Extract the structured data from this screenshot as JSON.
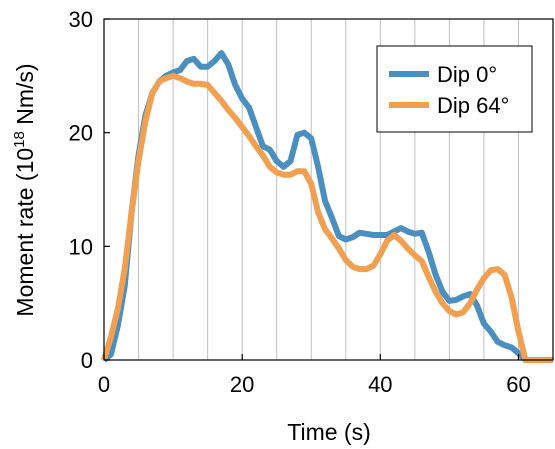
{
  "chart_data": {
    "type": "line",
    "xlabel": "Time (s)",
    "ylabel_main": "Moment rate (10",
    "ylabel_exp": "18",
    "ylabel_tail": " Nm/s)",
    "xlim": [
      0,
      65
    ],
    "ylim": [
      0,
      30
    ],
    "xticks": [
      0,
      20,
      40,
      60
    ],
    "yticks": [
      0,
      10,
      20,
      30
    ],
    "grid": "vertical",
    "grid_x": [
      5,
      10,
      15,
      20,
      25,
      30,
      35,
      40,
      45,
      50,
      55,
      60
    ],
    "legend_position": "top-right",
    "series": [
      {
        "name": "Dip 0°",
        "color": "#4a8fc0",
        "x": [
          0,
          1,
          2,
          3,
          4,
          5,
          6,
          7,
          8,
          9,
          10,
          11,
          12,
          13,
          14,
          15,
          16,
          17,
          18,
          19,
          20,
          21,
          22,
          23,
          24,
          25,
          26,
          27,
          28,
          29,
          30,
          31,
          32,
          33,
          34,
          35,
          36,
          37,
          38,
          39,
          40,
          41,
          42,
          43,
          44,
          45,
          46,
          47,
          48,
          49,
          50,
          51,
          52,
          53,
          54,
          55,
          56,
          57,
          58,
          59,
          60,
          61,
          65
        ],
        "y": [
          0,
          0.5,
          3,
          6.5,
          13,
          18,
          21.5,
          23.5,
          24.5,
          25,
          25.3,
          25.5,
          26.3,
          26.5,
          25.8,
          25.8,
          26.3,
          27,
          26,
          24.2,
          23,
          22.2,
          20.5,
          18.8,
          18.5,
          17.5,
          17,
          17.5,
          19.8,
          20,
          19.5,
          17,
          14,
          12.5,
          10.9,
          10.6,
          10.8,
          11.2,
          11.1,
          11,
          11,
          11,
          11.3,
          11.6,
          11.3,
          11.1,
          11.2,
          9.5,
          7.5,
          6,
          5.2,
          5.3,
          5.6,
          5.8,
          4.8,
          3.2,
          2.5,
          1.6,
          1.3,
          1.1,
          0.6,
          0,
          0
        ]
      },
      {
        "name": "Dip 64°",
        "color": "#f0a050",
        "x": [
          0,
          1,
          2,
          3,
          4,
          5,
          6,
          7,
          8,
          9,
          10,
          11,
          12,
          13,
          14,
          15,
          16,
          17,
          18,
          19,
          20,
          21,
          22,
          23,
          24,
          25,
          26,
          27,
          28,
          29,
          30,
          31,
          32,
          33,
          34,
          35,
          36,
          37,
          38,
          39,
          40,
          41,
          42,
          43,
          44,
          45,
          46,
          47,
          48,
          49,
          50,
          51,
          52,
          53,
          54,
          55,
          56,
          57,
          58,
          59,
          60,
          61,
          65
        ],
        "y": [
          0,
          2,
          4.5,
          8,
          13,
          17.5,
          21,
          23.5,
          24.5,
          24.8,
          25,
          24.8,
          24.5,
          24.3,
          24.3,
          24.2,
          23.5,
          22.8,
          22,
          21.3,
          20.5,
          19.7,
          18.8,
          18,
          17,
          16.5,
          16.3,
          16.3,
          16.6,
          16.6,
          15.5,
          13,
          11.5,
          10.7,
          9.8,
          8.8,
          8.2,
          8,
          8,
          8.3,
          9.3,
          10.5,
          11,
          10.5,
          9.8,
          9.2,
          8.7,
          7.3,
          6,
          5,
          4.3,
          4,
          4.2,
          5,
          6.2,
          7.2,
          7.9,
          8,
          7.5,
          5.5,
          2.5,
          0,
          0
        ]
      }
    ]
  }
}
